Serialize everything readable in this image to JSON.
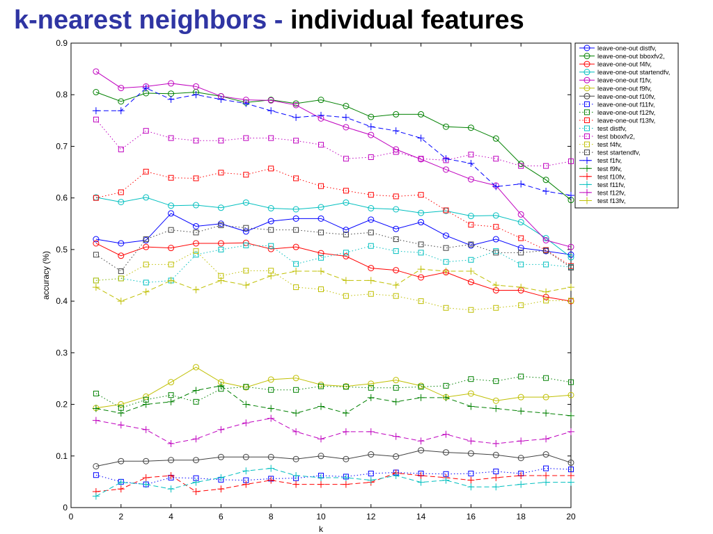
{
  "slide": {
    "title_part1": "k-nearest neighbors - ",
    "title_part2": "individual features",
    "title_color": "#2f35a3"
  },
  "chart_data": {
    "type": "line",
    "title": "",
    "xlabel": "k",
    "ylabel": "accuracy (%)",
    "xlim": [
      0,
      20
    ],
    "ylim": [
      0,
      0.9
    ],
    "xticks": [
      0,
      2,
      4,
      6,
      8,
      10,
      12,
      14,
      16,
      18,
      20
    ],
    "yticks": [
      0,
      0.1,
      0.2,
      0.3,
      0.4,
      0.5,
      0.6,
      0.7,
      0.8,
      0.9
    ],
    "grid": false,
    "legend_position": "top-right",
    "x": [
      1,
      2,
      3,
      4,
      5,
      6,
      7,
      8,
      9,
      10,
      11,
      12,
      13,
      14,
      15,
      16,
      17,
      18,
      19,
      20
    ],
    "series": [
      {
        "name": "leave-one-out distfv,",
        "color": "#0000ff",
        "marker": "circle",
        "line": "solid",
        "values": [
          0.52,
          0.512,
          0.518,
          0.57,
          0.545,
          0.55,
          0.535,
          0.555,
          0.56,
          0.56,
          0.538,
          0.558,
          0.54,
          0.553,
          0.527,
          0.508,
          0.52,
          0.503,
          0.497,
          0.49
        ]
      },
      {
        "name": "leave-one-out bboxfv2,",
        "color": "#008000",
        "marker": "circle",
        "line": "solid",
        "values": [
          0.805,
          0.787,
          0.803,
          0.802,
          0.805,
          0.797,
          0.785,
          0.79,
          0.783,
          0.79,
          0.778,
          0.757,
          0.762,
          0.762,
          0.738,
          0.736,
          0.715,
          0.666,
          0.635,
          0.596
        ]
      },
      {
        "name": "leave-one-out f4fv,",
        "color": "#ff0000",
        "marker": "circle",
        "line": "solid",
        "values": [
          0.512,
          0.488,
          0.505,
          0.503,
          0.512,
          0.512,
          0.513,
          0.501,
          0.505,
          0.493,
          0.487,
          0.464,
          0.46,
          0.446,
          0.456,
          0.437,
          0.421,
          0.421,
          0.408,
          0.4
        ]
      },
      {
        "name": "leave-one-out startendfv,",
        "color": "#00bfbf",
        "marker": "circle",
        "line": "solid",
        "values": [
          0.601,
          0.592,
          0.601,
          0.585,
          0.586,
          0.581,
          0.591,
          0.58,
          0.578,
          0.582,
          0.591,
          0.58,
          0.578,
          0.571,
          0.575,
          0.565,
          0.566,
          0.553,
          0.522,
          0.485
        ]
      },
      {
        "name": "leave-one-out f1fv,",
        "color": "#bf00bf",
        "marker": "circle",
        "line": "solid",
        "values": [
          0.845,
          0.813,
          0.816,
          0.822,
          0.816,
          0.797,
          0.79,
          0.789,
          0.78,
          0.754,
          0.737,
          0.722,
          0.694,
          0.675,
          0.655,
          0.636,
          0.624,
          0.568,
          0.518,
          0.505
        ]
      },
      {
        "name": "leave-one-out f9fv,",
        "color": "#bfbf00",
        "marker": "circle",
        "line": "solid",
        "values": [
          0.193,
          0.2,
          0.215,
          0.243,
          0.272,
          0.243,
          0.233,
          0.248,
          0.251,
          0.238,
          0.235,
          0.24,
          0.247,
          0.236,
          0.214,
          0.221,
          0.207,
          0.214,
          0.214,
          0.218
        ]
      },
      {
        "name": "leave-one-out f10fv,",
        "color": "#404040",
        "marker": "circle",
        "line": "solid",
        "values": [
          0.08,
          0.09,
          0.09,
          0.092,
          0.092,
          0.098,
          0.098,
          0.098,
          0.094,
          0.1,
          0.094,
          0.103,
          0.099,
          0.111,
          0.107,
          0.105,
          0.102,
          0.096,
          0.103,
          0.087
        ]
      },
      {
        "name": "leave-one-out f11fv,",
        "color": "#0000ff",
        "marker": "square",
        "line": "dotted",
        "values": [
          0.063,
          0.05,
          0.045,
          0.058,
          0.057,
          0.054,
          0.053,
          0.056,
          0.057,
          0.062,
          0.06,
          0.066,
          0.068,
          0.066,
          0.065,
          0.066,
          0.07,
          0.066,
          0.076,
          0.074
        ]
      },
      {
        "name": "leave-one-out f12fv,",
        "color": "#008000",
        "marker": "square",
        "line": "dotted",
        "values": [
          0.221,
          0.193,
          0.209,
          0.218,
          0.205,
          0.23,
          0.234,
          0.228,
          0.228,
          0.235,
          0.234,
          0.232,
          0.232,
          0.234,
          0.236,
          0.249,
          0.245,
          0.254,
          0.251,
          0.243
        ]
      },
      {
        "name": "leave-one-out f13fv,",
        "color": "#ff0000",
        "marker": "square",
        "line": "dotted",
        "values": [
          0.6,
          0.611,
          0.651,
          0.639,
          0.638,
          0.649,
          0.645,
          0.657,
          0.638,
          0.623,
          0.614,
          0.606,
          0.603,
          0.606,
          0.576,
          0.548,
          0.544,
          0.522,
          0.499,
          0.468
        ]
      },
      {
        "name": "test distfv,",
        "color": "#00bfbf",
        "marker": "square",
        "line": "dotted",
        "values": [
          0.44,
          0.444,
          0.436,
          0.44,
          0.49,
          0.5,
          0.508,
          0.507,
          0.472,
          0.484,
          0.494,
          0.507,
          0.497,
          0.494,
          0.476,
          0.48,
          0.497,
          0.471,
          0.471,
          0.466
        ]
      },
      {
        "name": "test bboxfv2,",
        "color": "#bf00bf",
        "marker": "square",
        "line": "dotted",
        "values": [
          0.752,
          0.694,
          0.73,
          0.716,
          0.711,
          0.711,
          0.716,
          0.716,
          0.711,
          0.703,
          0.676,
          0.679,
          0.689,
          0.676,
          0.673,
          0.684,
          0.676,
          0.662,
          0.662,
          0.671
        ]
      },
      {
        "name": "test f4fv,",
        "color": "#bfbf00",
        "marker": "square",
        "line": "dotted",
        "values": [
          0.44,
          0.444,
          0.471,
          0.471,
          0.497,
          0.449,
          0.459,
          0.459,
          0.427,
          0.423,
          0.41,
          0.414,
          0.41,
          0.4,
          0.387,
          0.383,
          0.387,
          0.392,
          0.401,
          0.401
        ]
      },
      {
        "name": "test startendfv,",
        "color": "#404040",
        "marker": "square",
        "line": "dotted",
        "values": [
          0.49,
          0.458,
          0.52,
          0.538,
          0.533,
          0.547,
          0.542,
          0.538,
          0.538,
          0.533,
          0.529,
          0.533,
          0.52,
          0.51,
          0.503,
          0.51,
          0.494,
          0.494,
          0.498,
          0.465
        ]
      },
      {
        "name": "test f1fv,",
        "color": "#0000ff",
        "marker": "plus",
        "line": "dashed",
        "values": [
          0.769,
          0.769,
          0.813,
          0.791,
          0.8,
          0.791,
          0.783,
          0.769,
          0.756,
          0.76,
          0.756,
          0.738,
          0.73,
          0.716,
          0.676,
          0.667,
          0.622,
          0.627,
          0.613,
          0.605
        ]
      },
      {
        "name": "test f9fv,",
        "color": "#008000",
        "marker": "plus",
        "line": "dashed",
        "values": [
          0.192,
          0.183,
          0.2,
          0.205,
          0.227,
          0.236,
          0.2,
          0.192,
          0.183,
          0.196,
          0.183,
          0.213,
          0.205,
          0.213,
          0.213,
          0.196,
          0.192,
          0.187,
          0.183,
          0.178
        ]
      },
      {
        "name": "test f10fv,",
        "color": "#ff0000",
        "marker": "plus",
        "line": "dashed",
        "values": [
          0.031,
          0.036,
          0.058,
          0.062,
          0.031,
          0.036,
          0.045,
          0.053,
          0.045,
          0.045,
          0.045,
          0.049,
          0.067,
          0.062,
          0.058,
          0.053,
          0.058,
          0.062,
          0.062,
          0.062
        ]
      },
      {
        "name": "test f11fv,",
        "color": "#00bfbf",
        "marker": "plus",
        "line": "dashed",
        "values": [
          0.022,
          0.049,
          0.045,
          0.036,
          0.049,
          0.058,
          0.071,
          0.076,
          0.062,
          0.058,
          0.058,
          0.053,
          0.062,
          0.049,
          0.053,
          0.04,
          0.04,
          0.045,
          0.049,
          0.049
        ]
      },
      {
        "name": "test f12fv,",
        "color": "#bf00bf",
        "marker": "plus",
        "line": "dashed",
        "values": [
          0.169,
          0.16,
          0.151,
          0.124,
          0.133,
          0.151,
          0.164,
          0.173,
          0.147,
          0.133,
          0.147,
          0.147,
          0.138,
          0.129,
          0.142,
          0.129,
          0.124,
          0.129,
          0.133,
          0.147
        ]
      },
      {
        "name": "test f13fv,",
        "color": "#bfbf00",
        "marker": "plus",
        "line": "dashed",
        "values": [
          0.427,
          0.4,
          0.418,
          0.44,
          0.422,
          0.44,
          0.431,
          0.449,
          0.458,
          0.458,
          0.44,
          0.44,
          0.431,
          0.462,
          0.458,
          0.458,
          0.431,
          0.427,
          0.418,
          0.427
        ]
      }
    ]
  }
}
